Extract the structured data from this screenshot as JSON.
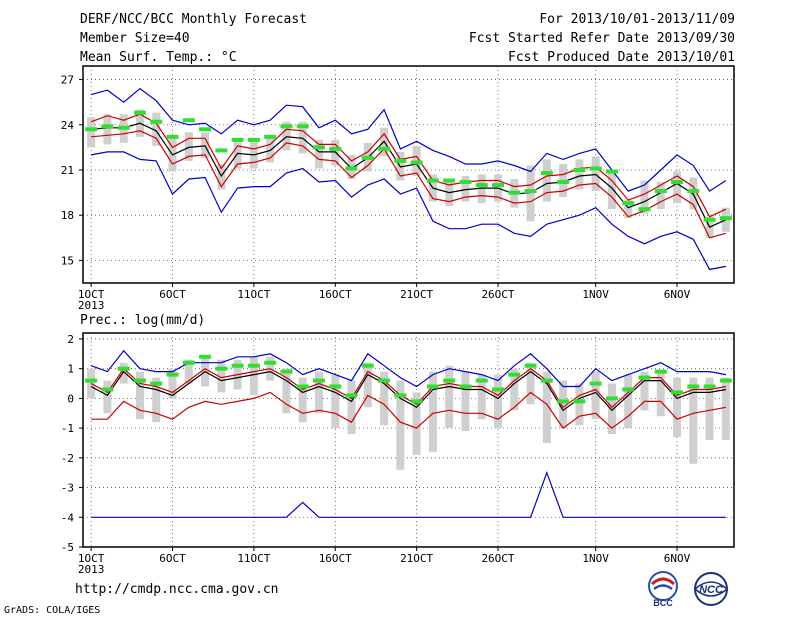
{
  "header": {
    "title": "DERF/NCC/BCC Monthly Forecast",
    "member_size": "Member Size=40",
    "variable": "Mean Surf. Temp.: °C",
    "period": "For 2013/10/01-2013/11/09",
    "fcst_started": "Fcst Started Refer Date 2013/09/30",
    "fcst_produced": "Fcst Produced Date 2013/10/01"
  },
  "footer": {
    "url": "http://cmdp.ncc.cma.gov.cn",
    "grads": "GrADS: COLA/IGES",
    "logo1_text": "BCC",
    "logo2_text": "NCC"
  },
  "colors": {
    "box": "#cfcfcf",
    "green": "#33dd33",
    "blue": "#0000cc",
    "red": "#cc0000",
    "mean": "#000000",
    "grid": "#555555"
  },
  "chart_data": [
    {
      "type": "line",
      "ylabel": "",
      "ylim": [
        13.5,
        27.9
      ],
      "yticks": [
        15,
        18,
        21,
        24,
        27
      ],
      "xlim": [
        0.5,
        40.5
      ],
      "xticks": [
        1,
        6,
        11,
        16,
        21,
        26,
        32,
        37
      ],
      "xtick_labels": [
        "1OCT",
        "6OCT",
        "11OCT",
        "16OCT",
        "21OCT",
        "26OCT",
        "1NOV",
        "6NOV"
      ],
      "year_label": "2013",
      "x": [
        1,
        2,
        3,
        4,
        5,
        6,
        7,
        8,
        9,
        10,
        11,
        12,
        13,
        14,
        15,
        16,
        17,
        18,
        19,
        20,
        21,
        22,
        23,
        24,
        25,
        26,
        27,
        28,
        29,
        30,
        31,
        32,
        33,
        34,
        35,
        36,
        37,
        38,
        39,
        40
      ],
      "series": [
        {
          "role": "max",
          "values": [
            26.0,
            26.3,
            25.5,
            26.4,
            25.6,
            24.3,
            24.0,
            24.1,
            23.4,
            24.3,
            24.0,
            24.3,
            25.3,
            25.2,
            23.8,
            24.3,
            23.4,
            23.7,
            25.0,
            22.4,
            22.9,
            22.3,
            21.9,
            21.4,
            21.4,
            21.6,
            21.3,
            20.9,
            22.1,
            21.7,
            22.1,
            22.4,
            21.0,
            19.6,
            20.0,
            21.0,
            22.0,
            21.3,
            19.6,
            20.3
          ]
        },
        {
          "role": "upper",
          "values": [
            24.2,
            24.6,
            24.3,
            24.7,
            24.1,
            22.5,
            23.1,
            23.1,
            21.1,
            22.6,
            22.4,
            22.7,
            23.7,
            23.6,
            22.7,
            22.7,
            21.6,
            22.2,
            23.4,
            21.7,
            21.9,
            20.3,
            20.0,
            20.2,
            20.3,
            20.3,
            19.9,
            20.0,
            20.6,
            20.7,
            21.1,
            21.2,
            20.3,
            19.0,
            19.4,
            20.0,
            20.6,
            19.9,
            17.9,
            18.4
          ]
        },
        {
          "role": "mean",
          "values": [
            23.7,
            23.8,
            23.8,
            24.1,
            23.6,
            22.0,
            22.5,
            22.6,
            20.6,
            22.1,
            22.0,
            22.3,
            23.2,
            23.1,
            22.2,
            22.2,
            21.1,
            21.8,
            22.9,
            21.2,
            21.4,
            19.8,
            19.5,
            19.7,
            19.8,
            19.8,
            19.4,
            19.5,
            20.1,
            20.2,
            20.6,
            20.7,
            19.8,
            18.5,
            18.9,
            19.5,
            20.1,
            19.4,
            17.2,
            17.7
          ]
        },
        {
          "role": "lower",
          "values": [
            23.2,
            23.3,
            23.4,
            23.6,
            23.1,
            21.4,
            21.9,
            22.0,
            19.9,
            21.4,
            21.5,
            21.8,
            22.8,
            22.6,
            21.7,
            21.6,
            20.5,
            21.3,
            22.4,
            20.6,
            20.8,
            19.1,
            18.9,
            19.2,
            19.3,
            19.2,
            18.8,
            18.9,
            19.5,
            19.6,
            20.0,
            20.1,
            19.2,
            17.9,
            18.3,
            18.9,
            19.4,
            18.7,
            16.5,
            16.8
          ]
        },
        {
          "role": "min",
          "values": [
            22.0,
            22.2,
            22.2,
            21.7,
            21.6,
            19.4,
            20.4,
            20.5,
            18.2,
            19.8,
            19.9,
            19.9,
            20.8,
            21.1,
            20.2,
            20.3,
            19.2,
            20.0,
            20.4,
            19.4,
            19.8,
            17.6,
            17.1,
            17.1,
            17.4,
            17.4,
            16.8,
            16.6,
            17.4,
            17.7,
            18.0,
            18.5,
            17.4,
            16.6,
            16.1,
            16.6,
            16.9,
            16.4,
            14.4,
            14.6
          ]
        }
      ],
      "box_low": [
        22.5,
        22.7,
        22.8,
        23.2,
        22.6,
        20.9,
        21.6,
        21.8,
        19.7,
        21.1,
        21.1,
        21.5,
        22.3,
        22.1,
        21.1,
        21.3,
        20.4,
        20.9,
        21.9,
        20.3,
        20.6,
        18.9,
        18.6,
        18.9,
        18.8,
        18.9,
        18.5,
        17.6,
        18.9,
        19.2,
        19.7,
        19.6,
        18.4,
        17.8,
        18.1,
        18.4,
        18.8,
        18.4,
        16.5,
        16.9
      ],
      "box_high": [
        24.5,
        24.7,
        24.7,
        25.0,
        24.8,
        23.1,
        23.5,
        23.5,
        21.4,
        23.0,
        23.0,
        23.2,
        24.2,
        24.2,
        23.0,
        23.0,
        22.0,
        22.8,
        23.8,
        22.2,
        22.6,
        20.7,
        20.3,
        20.6,
        20.7,
        20.7,
        20.4,
        21.3,
        21.7,
        21.4,
        21.7,
        21.9,
        20.9,
        19.0,
        20.3,
        20.2,
        20.9,
        20.5,
        17.9,
        18.5
      ],
      "green_marks": [
        23.7,
        23.9,
        23.8,
        24.8,
        24.2,
        23.2,
        24.3,
        23.7,
        22.3,
        23.0,
        23.0,
        23.2,
        23.9,
        23.9,
        22.5,
        22.4,
        21.1,
        21.8,
        22.4,
        21.6,
        21.5,
        20.3,
        20.3,
        20.2,
        20.0,
        20.0,
        19.5,
        19.6,
        20.8,
        20.2,
        21.0,
        21.1,
        20.9,
        18.8,
        18.4,
        19.6,
        20.2,
        19.6,
        17.7,
        17.8
      ]
    },
    {
      "type": "line",
      "title": "Prec.: log(mm/d)",
      "ylim": [
        -5,
        2.2
      ],
      "yticks": [
        -5,
        -4,
        -3,
        -2,
        -1,
        0,
        1,
        2
      ],
      "xlim": [
        0.5,
        40.5
      ],
      "xticks": [
        1,
        6,
        11,
        16,
        21,
        26,
        32,
        37
      ],
      "xtick_labels": [
        "1OCT",
        "6OCT",
        "11OCT",
        "16OCT",
        "21OCT",
        "26OCT",
        "1NOV",
        "6NOV"
      ],
      "year_label": "2013",
      "x": [
        1,
        2,
        3,
        4,
        5,
        6,
        7,
        8,
        9,
        10,
        11,
        12,
        13,
        14,
        15,
        16,
        17,
        18,
        19,
        20,
        21,
        22,
        23,
        24,
        25,
        26,
        27,
        28,
        29,
        30,
        31,
        32,
        33,
        34,
        35,
        36,
        37,
        38,
        39,
        40
      ],
      "series": [
        {
          "role": "max",
          "values": [
            1.1,
            0.9,
            1.6,
            1.0,
            0.9,
            0.9,
            1.2,
            1.2,
            1.2,
            1.4,
            1.4,
            1.5,
            1.2,
            0.8,
            1.0,
            0.8,
            0.6,
            1.5,
            1.1,
            0.7,
            0.4,
            0.8,
            1.0,
            0.9,
            0.8,
            0.6,
            1.1,
            1.5,
            1.0,
            0.4,
            0.4,
            1.0,
            0.6,
            0.8,
            1.0,
            1.2,
            0.9,
            0.9,
            0.9,
            0.8
          ]
        },
        {
          "role": "mean",
          "values": [
            0.4,
            0.1,
            0.9,
            0.4,
            0.3,
            0.1,
            0.5,
            0.9,
            0.6,
            0.7,
            0.8,
            0.9,
            0.6,
            0.2,
            0.4,
            0.2,
            -0.1,
            0.8,
            0.5,
            0.0,
            -0.3,
            0.3,
            0.4,
            0.3,
            0.3,
            0.0,
            0.5,
            0.9,
            0.5,
            -0.4,
            0.0,
            0.2,
            -0.4,
            0.1,
            0.6,
            0.6,
            0.0,
            0.2,
            0.2,
            0.3
          ]
        },
        {
          "role": "lower",
          "values": [
            -0.7,
            -0.7,
            -0.1,
            -0.4,
            -0.5,
            -0.7,
            -0.3,
            -0.1,
            -0.2,
            -0.1,
            0.0,
            0.2,
            -0.2,
            -0.5,
            -0.4,
            -0.5,
            -0.8,
            0.1,
            -0.2,
            -0.8,
            -1.0,
            -0.5,
            -0.4,
            -0.5,
            -0.5,
            -0.7,
            -0.3,
            0.2,
            -0.2,
            -1.0,
            -0.6,
            -0.5,
            -1.0,
            -0.6,
            -0.1,
            -0.1,
            -0.7,
            -0.5,
            -0.4,
            -0.3
          ]
        },
        {
          "role": "upper",
          "values": [
            0.5,
            0.2,
            1.0,
            0.5,
            0.4,
            0.2,
            0.6,
            1.0,
            0.7,
            0.8,
            0.9,
            1.0,
            0.7,
            0.3,
            0.5,
            0.3,
            0.0,
            0.9,
            0.6,
            0.1,
            -0.2,
            0.4,
            0.5,
            0.4,
            0.4,
            0.1,
            0.6,
            1.0,
            0.6,
            -0.3,
            0.1,
            0.3,
            -0.3,
            0.2,
            0.7,
            0.7,
            0.1,
            0.3,
            0.3,
            0.4
          ]
        },
        {
          "role": "min",
          "values": [
            -4,
            -4,
            -4,
            -4,
            -4,
            -4,
            -4,
            -4,
            -4,
            -4,
            -4,
            -4,
            -4,
            -3.5,
            -4,
            -4,
            -4,
            -4,
            -4,
            -4,
            -4,
            -4,
            -4,
            -4,
            -4,
            -4,
            -4,
            -4,
            -2.5,
            -4,
            -4,
            -4,
            -4,
            -4,
            -4,
            -4,
            -4,
            -4,
            -4,
            -4
          ]
        }
      ],
      "box_low": [
        0.0,
        -0.5,
        0.5,
        -0.7,
        -0.8,
        0.0,
        0.5,
        0.4,
        0.2,
        0.3,
        0.1,
        0.6,
        -0.5,
        -0.8,
        -0.5,
        -1.0,
        -1.2,
        -0.3,
        -0.9,
        -2.4,
        -1.9,
        -1.8,
        -1.0,
        -1.1,
        -0.7,
        -1.0,
        -0.4,
        -0.2,
        -1.5,
        -1.0,
        -0.9,
        -0.7,
        -1.2,
        -1.0,
        -0.4,
        -0.6,
        -1.3,
        -2.2,
        -1.4,
        -1.4
      ],
      "box_high": [
        1.0,
        0.6,
        1.2,
        0.9,
        0.7,
        1.0,
        1.3,
        1.4,
        1.3,
        1.3,
        1.4,
        1.4,
        1.0,
        0.7,
        0.9,
        0.8,
        0.6,
        1.2,
        0.9,
        0.6,
        0.2,
        0.9,
        1.1,
        0.9,
        0.8,
        0.8,
        1.0,
        1.2,
        0.9,
        0.6,
        0.5,
        0.9,
        0.5,
        0.8,
        0.9,
        0.9,
        0.7,
        0.7,
        0.7,
        0.7
      ],
      "green_marks": [
        0.6,
        0.3,
        1.0,
        0.6,
        0.5,
        0.8,
        1.2,
        1.4,
        1.0,
        1.1,
        1.1,
        1.2,
        0.9,
        0.4,
        0.6,
        0.4,
        0.1,
        1.1,
        0.6,
        0.1,
        -0.1,
        0.4,
        0.6,
        0.4,
        0.6,
        0.3,
        0.8,
        1.1,
        0.6,
        -0.1,
        -0.1,
        0.5,
        0.0,
        0.3,
        0.7,
        0.9,
        0.2,
        0.4,
        0.4,
        0.6
      ]
    }
  ]
}
